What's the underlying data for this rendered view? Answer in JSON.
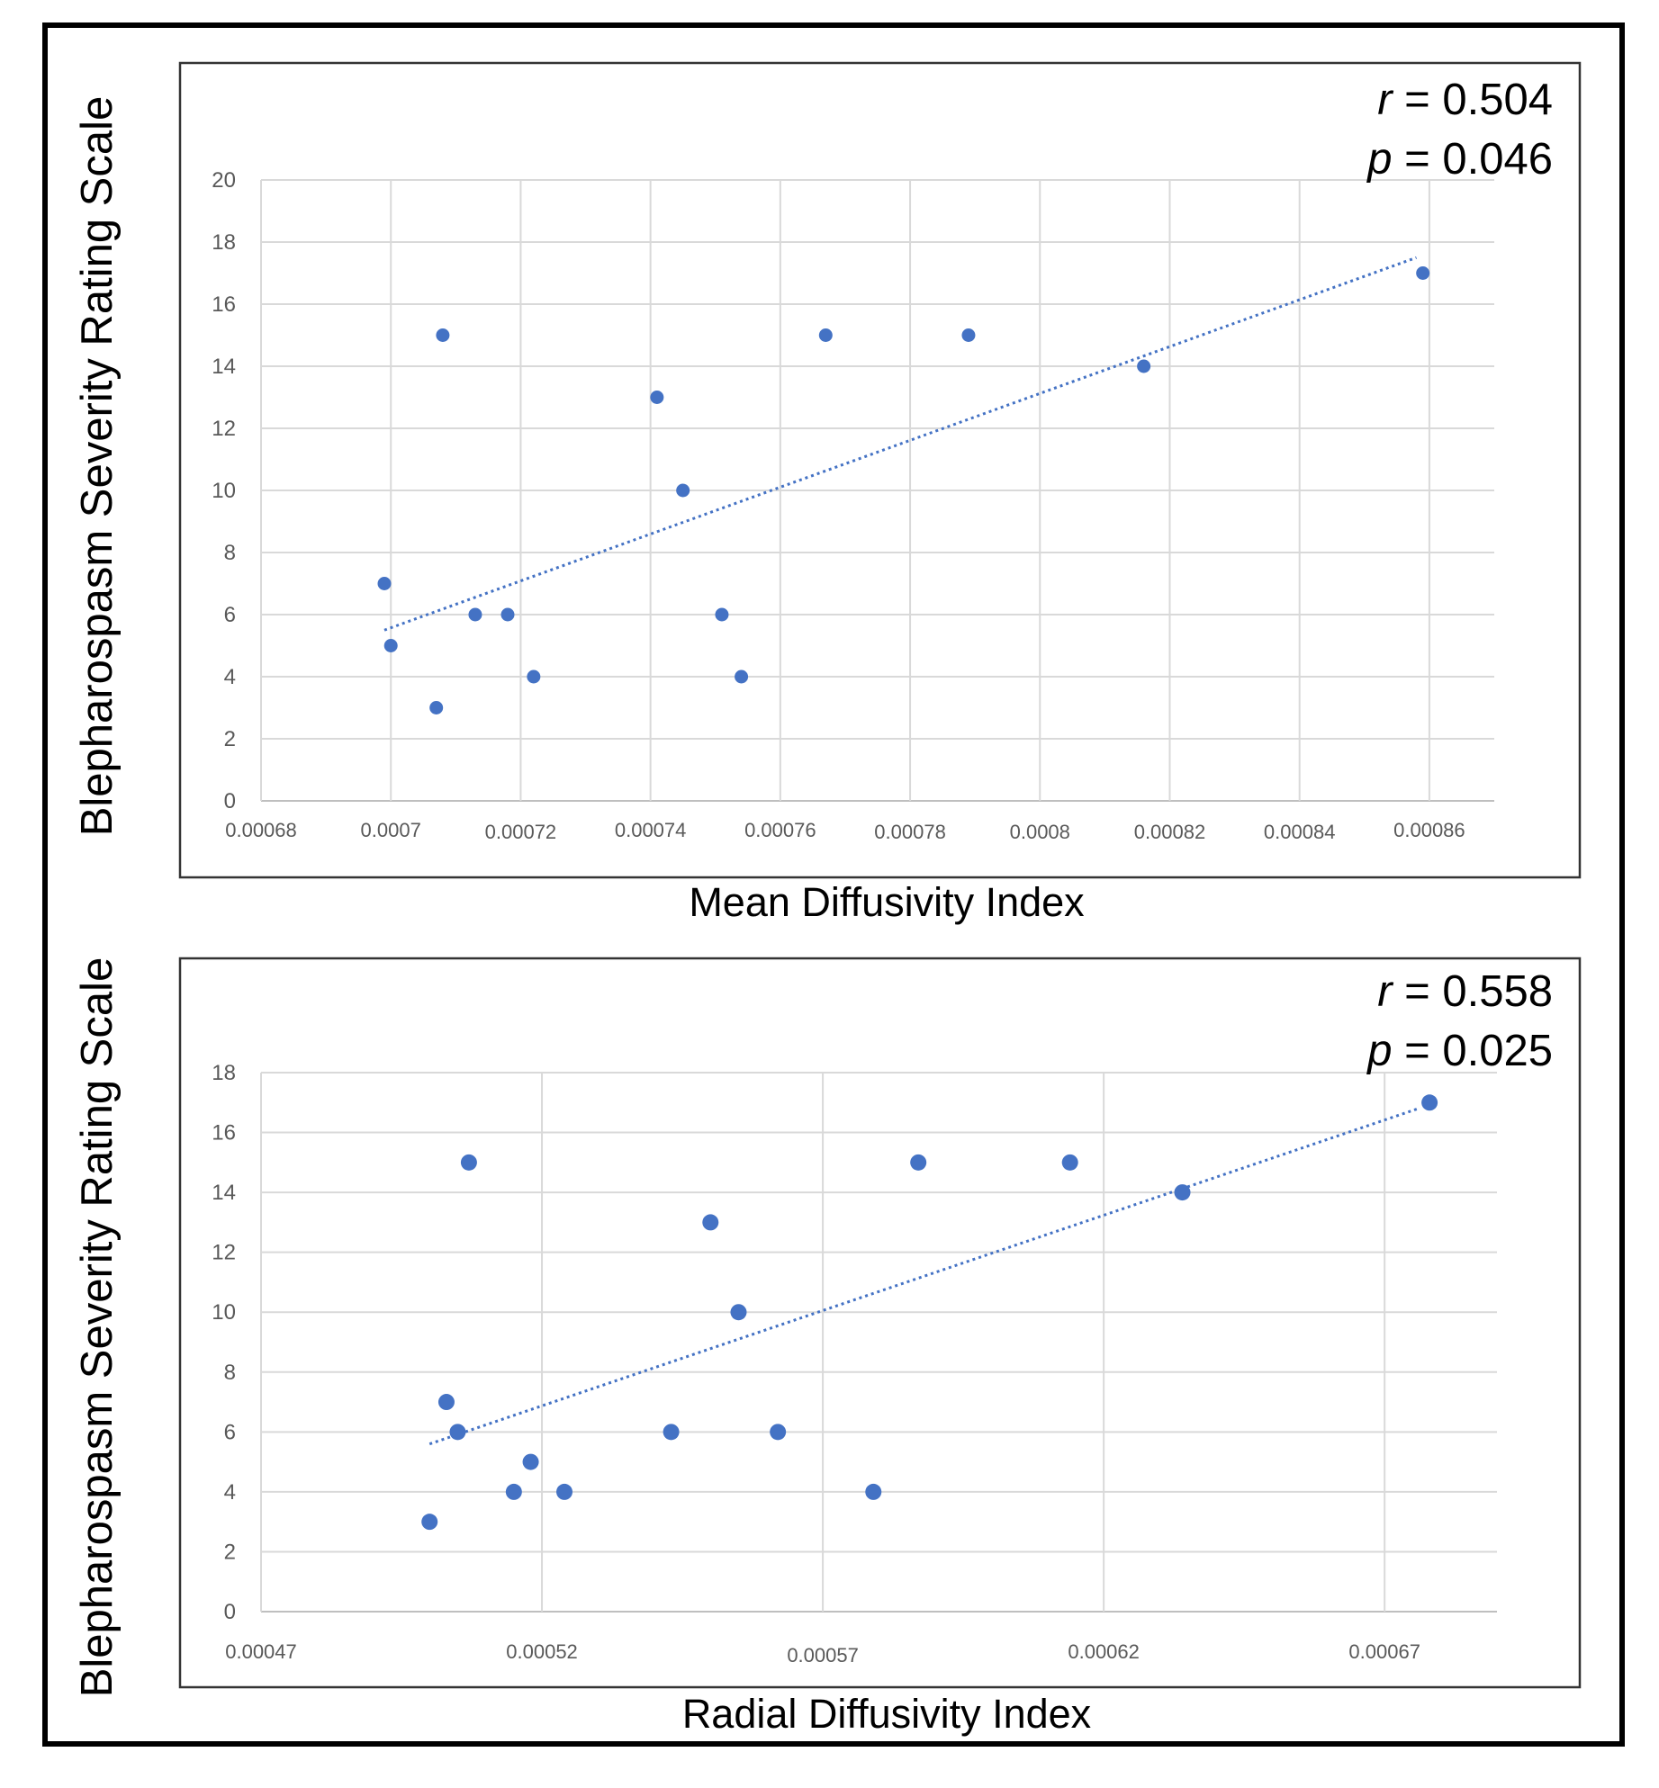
{
  "colors": {
    "marker": "#4472C4",
    "trend": "#4472C4",
    "grid": "#d9d9d9",
    "axis": "#bfbfbf",
    "frame": "#000000",
    "plot_border": "#333333",
    "tick_text": "#595959",
    "label_text": "#000000"
  },
  "chart_data": [
    {
      "type": "scatter",
      "title": "",
      "xlabel": "Mean Diffusivity Index",
      "ylabel": "Blepharospasm Severity Rating Scale",
      "x_ticks": [
        "0.00068",
        "0.0007",
        "0.00072",
        "0.00074",
        "0.00076",
        "0.00078",
        "0.0008",
        "0.00082",
        "0.00084",
        "0.00086"
      ],
      "y_ticks": [
        "0",
        "2",
        "4",
        "6",
        "8",
        "10",
        "12",
        "14",
        "16",
        "18",
        "20"
      ],
      "xlim": [
        0.00068,
        0.00087
      ],
      "ylim": [
        0,
        20
      ],
      "grid": true,
      "annotation": {
        "r_sym": "r",
        "r_val": " = 0.504",
        "p_sym": "p",
        "p_val": " = 0.046"
      },
      "points": [
        {
          "x": 0.000699,
          "y": 7
        },
        {
          "x": 0.0007,
          "y": 5
        },
        {
          "x": 0.000707,
          "y": 3
        },
        {
          "x": 0.000708,
          "y": 15
        },
        {
          "x": 0.000713,
          "y": 6
        },
        {
          "x": 0.000718,
          "y": 6
        },
        {
          "x": 0.000722,
          "y": 4
        },
        {
          "x": 0.000741,
          "y": 13
        },
        {
          "x": 0.000745,
          "y": 10
        },
        {
          "x": 0.000751,
          "y": 6
        },
        {
          "x": 0.000754,
          "y": 4
        },
        {
          "x": 0.000767,
          "y": 15
        },
        {
          "x": 0.000789,
          "y": 15
        },
        {
          "x": 0.000816,
          "y": 14
        },
        {
          "x": 0.000859,
          "y": 17
        }
      ],
      "trendline": {
        "x": [
          0.000699,
          0.000858
        ],
        "y": [
          5.5,
          17.5
        ]
      }
    },
    {
      "type": "scatter",
      "title": "",
      "xlabel": "Radial Diffusivity Index",
      "ylabel": "Blepharospasm Severity Rating Scale",
      "x_ticks": [
        "0.00047",
        "0.00052",
        "0.00057",
        "0.00062",
        "0.00067"
      ],
      "y_ticks": [
        "0",
        "2",
        "4",
        "6",
        "8",
        "10",
        "12",
        "14",
        "16",
        "18"
      ],
      "xlim": [
        0.00047,
        0.00069
      ],
      "ylim": [
        0,
        18
      ],
      "grid": true,
      "annotation": {
        "r_sym": "r",
        "r_val": " = 0.558",
        "p_sym": "p",
        "p_val": " = 0.025"
      },
      "points": [
        {
          "x": 0.0005,
          "y": 3
        },
        {
          "x": 0.000503,
          "y": 7
        },
        {
          "x": 0.000505,
          "y": 6
        },
        {
          "x": 0.000507,
          "y": 15
        },
        {
          "x": 0.000515,
          "y": 4
        },
        {
          "x": 0.000518,
          "y": 5
        },
        {
          "x": 0.000524,
          "y": 4
        },
        {
          "x": 0.000543,
          "y": 6
        },
        {
          "x": 0.00055,
          "y": 13
        },
        {
          "x": 0.000555,
          "y": 10
        },
        {
          "x": 0.000562,
          "y": 6
        },
        {
          "x": 0.000579,
          "y": 4
        },
        {
          "x": 0.000587,
          "y": 15
        },
        {
          "x": 0.000614,
          "y": 15
        },
        {
          "x": 0.000634,
          "y": 14
        },
        {
          "x": 0.000678,
          "y": 17
        }
      ],
      "trendline": {
        "x": [
          0.0005,
          0.000676
        ],
        "y": [
          5.6,
          16.8
        ]
      }
    }
  ]
}
